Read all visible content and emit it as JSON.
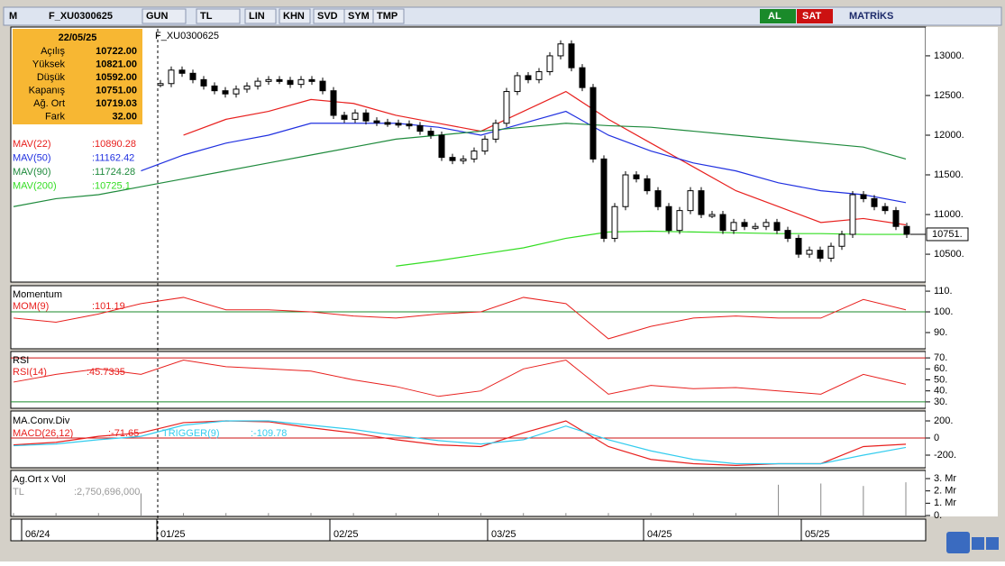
{
  "toolbar": {
    "logo": "M",
    "symbol": "F_XU0300625",
    "buttons": [
      "GUN",
      "TL",
      "LIN",
      "KHN",
      "SVD",
      "SYM",
      "TMP"
    ],
    "buy": "AL",
    "sell": "SAT",
    "brand": "MATRİKS"
  },
  "info": {
    "date": "22/05/25",
    "rows": [
      {
        "label": "Açılış",
        "value": "10722.00"
      },
      {
        "label": "Yüksek",
        "value": "10821.00"
      },
      {
        "label": "Düşük",
        "value": "10592.00"
      },
      {
        "label": "Kapanış",
        "value": "10751.00"
      },
      {
        "label": "Ağ. Ort",
        "value": "10719.03"
      },
      {
        "label": "Fark",
        "value": "32.00"
      }
    ]
  },
  "price_panel": {
    "title": "F_XU0300625",
    "ylim": [
      10160,
      13340
    ],
    "yticks": [
      {
        "value": 13000,
        "label": "13000."
      },
      {
        "value": 12500,
        "label": "12500."
      },
      {
        "value": 12000,
        "label": "12000."
      },
      {
        "value": 11500,
        "label": "11500."
      },
      {
        "value": 11000,
        "label": "11000."
      },
      {
        "value": 10500,
        "label": "10500."
      }
    ],
    "last": {
      "value": 10751,
      "label": "10751."
    },
    "close": [
      12650,
      12820,
      12780,
      12700,
      12620,
      12560,
      12520,
      12580,
      12620,
      12680,
      12700,
      12690,
      12640,
      12700,
      12680,
      12560,
      12250,
      12200,
      12280,
      12180,
      12160,
      12150,
      12140,
      12120,
      12050,
      12000,
      11720,
      11680,
      11700,
      11800,
      11950,
      12150,
      12550,
      12750,
      12700,
      12800,
      13000,
      13150,
      12850,
      12600,
      11700,
      10700,
      11100,
      11500,
      11450,
      11300,
      11100,
      10800,
      11050,
      11300,
      11000,
      11000,
      10800,
      10900,
      10850,
      10850,
      10900,
      10800,
      10700,
      10500,
      10550,
      10450,
      10600,
      10750,
      11250,
      11200,
      11100,
      11050,
      10850,
      10751
    ],
    "ma": [
      {
        "name": "MAV(22)",
        "value_label": ":10890.28",
        "color": "#e8201e",
        "values": [
          null,
          null,
          null,
          null,
          12000,
          12200,
          12300,
          12450,
          12400,
          12250,
          12150,
          12050,
          12300,
          12550,
          12200,
          11900,
          11600,
          11300,
          11100,
          10900,
          10950,
          10870
        ]
      },
      {
        "name": "MAV(50)",
        "value_label": ":11162.42",
        "color": "#2030e0",
        "values": [
          null,
          null,
          null,
          11550,
          11750,
          11900,
          12000,
          12150,
          12150,
          12150,
          12100,
          12000,
          12150,
          12300,
          12000,
          11800,
          11650,
          11550,
          11400,
          11300,
          11250,
          11150
        ]
      },
      {
        "name": "MAV(90)",
        "value_label": ":11724.28",
        "color": "#1e8a3c",
        "values": [
          11100,
          11200,
          11250,
          11350,
          11450,
          11550,
          11650,
          11750,
          11850,
          11950,
          12000,
          12050,
          12100,
          12150,
          12120,
          12100,
          12050,
          12000,
          11950,
          11900,
          11850,
          11700
        ]
      },
      {
        "name": "MAV(200)",
        "value_label": ":10725.1",
        "color": "#33dd22",
        "values": [
          null,
          null,
          null,
          null,
          null,
          null,
          null,
          null,
          null,
          10350,
          10420,
          10500,
          10580,
          10700,
          10780,
          10790,
          10780,
          10770,
          10760,
          10760,
          10750,
          10750
        ]
      }
    ]
  },
  "momentum": {
    "title": "Momentum",
    "name": "MOM(9)",
    "value_label": ":101.19",
    "color": "#e8201e",
    "ylim": [
      82.6,
      112.2
    ],
    "yticks": [
      {
        "value": 110,
        "label": "110."
      },
      {
        "value": 100,
        "label": "100."
      },
      {
        "value": 90,
        "label": "90."
      }
    ],
    "ref": 100,
    "values": [
      97,
      95,
      99,
      104,
      107,
      101,
      101,
      100,
      98,
      97,
      99,
      100,
      107,
      104,
      87,
      93,
      97,
      98,
      97,
      97,
      106,
      101
    ]
  },
  "rsi": {
    "title": "RSI",
    "name": "RSI(14)",
    "value_label": ":45.7335",
    "color": "#e8201e",
    "ylim": [
      25,
      75
    ],
    "yticks": [
      {
        "value": 70,
        "label": "70."
      },
      {
        "value": 60,
        "label": "60."
      },
      {
        "value": 50,
        "label": "50."
      },
      {
        "value": 40,
        "label": "40."
      },
      {
        "value": 30,
        "label": "30."
      }
    ],
    "upper": 70,
    "lower": 30,
    "values": [
      48,
      55,
      60,
      55,
      68,
      62,
      60,
      58,
      50,
      44,
      35,
      40,
      60,
      68,
      37,
      45,
      42,
      43,
      40,
      37,
      55,
      46
    ]
  },
  "macd": {
    "title": "MA.Conv.Div",
    "ylim": [
      -337,
      295
    ],
    "yticks": [
      {
        "value": 200,
        "label": "200."
      },
      {
        "value": 0,
        "label": "0"
      },
      {
        "value": -200,
        "label": "-200."
      }
    ],
    "ref": 0,
    "series": [
      {
        "name": "MACD(26,12)",
        "value_label": ":-71.65",
        "color": "#e8201e",
        "values": [
          -80,
          -50,
          20,
          60,
          180,
          200,
          190,
          120,
          60,
          -20,
          -80,
          -100,
          60,
          200,
          -100,
          -250,
          -300,
          -320,
          -300,
          -300,
          -100,
          -72
        ]
      },
      {
        "name": "TRIGGER(9)",
        "value_label": ":-109.78",
        "color": "#33ccee",
        "values": [
          -90,
          -70,
          -20,
          20,
          150,
          200,
          200,
          150,
          100,
          30,
          -30,
          -70,
          -20,
          140,
          -20,
          -150,
          -250,
          -300,
          -300,
          -300,
          -200,
          -110
        ]
      }
    ]
  },
  "volume": {
    "title": "Ag.Ort x Vol",
    "unit": "TL",
    "value_label": ":2,750,696,000",
    "ylim": [
      0,
      3.66
    ],
    "yticks": [
      {
        "value": 3,
        "label": "3. Mr"
      },
      {
        "value": 2,
        "label": "2. Mr"
      },
      {
        "value": 1,
        "label": "1. Mr"
      },
      {
        "value": 0,
        "label": "0."
      }
    ],
    "values": [
      0.2,
      0.2,
      0.2,
      1.8,
      0.2,
      0.2,
      0.2,
      0.2,
      0.2,
      0.2,
      0.2,
      0.2,
      0.2,
      0.2,
      0.2,
      0.2,
      0.2,
      0.2,
      2.5,
      2.6,
      2.4,
      2.7
    ]
  },
  "time_axis": [
    "06/24",
    "01/25",
    "02/25",
    "03/25",
    "04/25",
    "05/25"
  ]
}
